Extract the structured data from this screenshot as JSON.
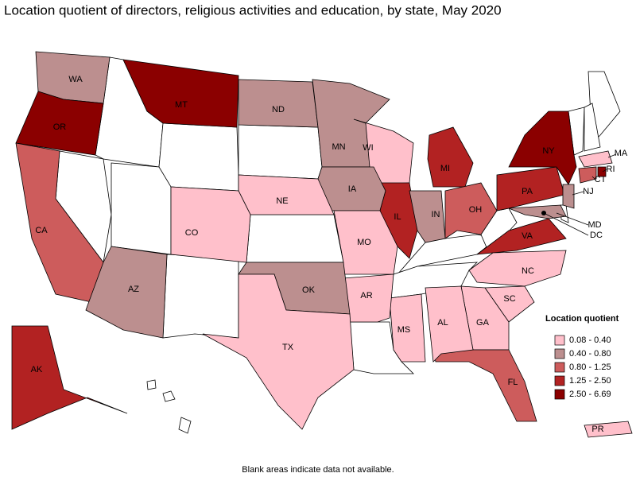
{
  "title": "Location quotient of directors, religious activities and education, by state, May 2020",
  "legend": {
    "title": "Location quotient",
    "items": [
      {
        "label": "0.08 - 0.40",
        "color": "#ffc0cb"
      },
      {
        "label": "0.40 - 0.80",
        "color": "#bc8f8f"
      },
      {
        "label": "0.80 - 1.25",
        "color": "#cd5c5c"
      },
      {
        "label": "1.25 - 2.50",
        "color": "#b22222"
      },
      {
        "label": "2.50 - 6.69",
        "color": "#8b0000"
      }
    ]
  },
  "states": [
    {
      "label": "WA",
      "color": "#bc8f8f"
    },
    {
      "label": "OR",
      "color": "#8b0000"
    },
    {
      "label": "MT",
      "color": "#8b0000"
    },
    {
      "label": "ND",
      "color": "#bc8f8f"
    },
    {
      "label": "MN",
      "color": "#bc8f8f"
    },
    {
      "label": "WI",
      "color": "#ffc0cb"
    },
    {
      "label": "MI",
      "color": "#b22222"
    },
    {
      "label": "IA",
      "color": "#bc8f8f"
    },
    {
      "label": "IL",
      "color": "#b22222"
    },
    {
      "label": "IN",
      "color": "#bc8f8f"
    },
    {
      "label": "OH",
      "color": "#cd5c5c"
    },
    {
      "label": "PA",
      "color": "#b22222"
    },
    {
      "label": "NY",
      "color": "#8b0000"
    },
    {
      "label": "MA",
      "color": "#ffc0cb"
    },
    {
      "label": "CT",
      "color": "#cd5c5c"
    },
    {
      "label": "RI",
      "color": "#8b0000"
    },
    {
      "label": "NJ",
      "color": "#bc8f8f"
    },
    {
      "label": "MD",
      "color": "#bc8f8f"
    },
    {
      "label": "DC",
      "color": "#000000"
    },
    {
      "label": "VA",
      "color": "#b22222"
    },
    {
      "label": "NC",
      "color": "#ffc0cb"
    },
    {
      "label": "SC",
      "color": "#ffc0cb"
    },
    {
      "label": "GA",
      "color": "#ffc0cb"
    },
    {
      "label": "FL",
      "color": "#cd5c5c"
    },
    {
      "label": "AL",
      "color": "#ffc0cb"
    },
    {
      "label": "MS",
      "color": "#ffc0cb"
    },
    {
      "label": "AR",
      "color": "#ffc0cb"
    },
    {
      "label": "MO",
      "color": "#ffc0cb"
    },
    {
      "label": "NE",
      "color": "#ffc0cb"
    },
    {
      "label": "CO",
      "color": "#ffc0cb"
    },
    {
      "label": "CA",
      "color": "#cd5c5c"
    },
    {
      "label": "AZ",
      "color": "#bc8f8f"
    },
    {
      "label": "OK",
      "color": "#bc8f8f"
    },
    {
      "label": "TX",
      "color": "#ffc0cb"
    },
    {
      "label": "AK",
      "color": "#b22222"
    },
    {
      "label": "PR",
      "color": "#ffc0cb"
    }
  ],
  "footnote": "Blank areas indicate data not available."
}
